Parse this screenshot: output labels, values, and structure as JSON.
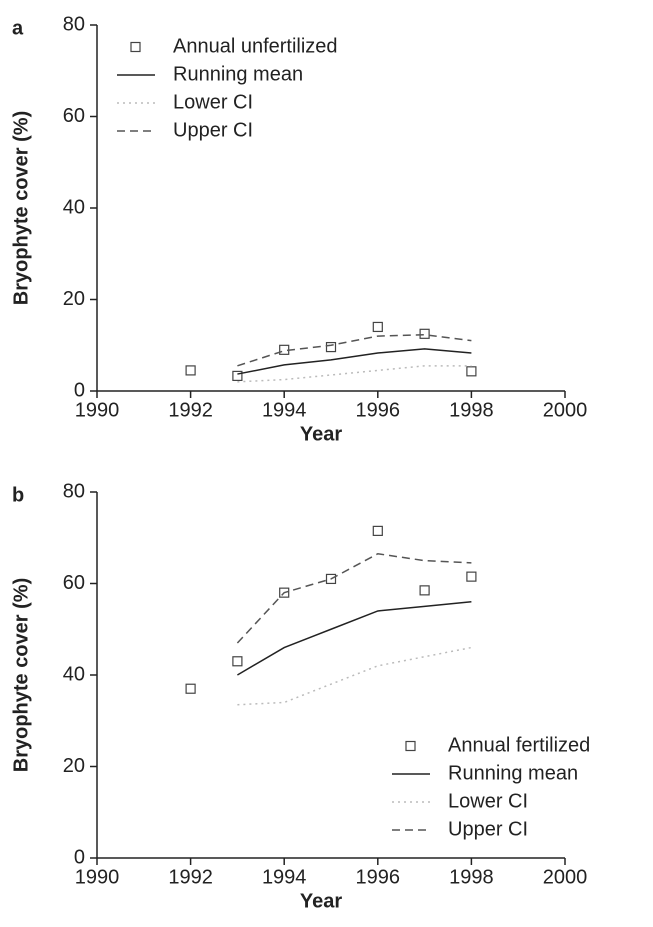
{
  "chart_data": [
    {
      "type": "line",
      "label": "a",
      "xlabel": "Year",
      "ylabel": "Bryophyte cover (%)",
      "x": [
        1992,
        1993,
        1994,
        1995,
        1996,
        1997,
        1998
      ],
      "series": [
        {
          "name": "Annual unfertilized",
          "style": "marker",
          "color": "#444444",
          "values": [
            4.5,
            3.3,
            9,
            9.6,
            14,
            12.5,
            4.3
          ]
        },
        {
          "name": "Running mean",
          "style": "solid",
          "color": "#222222",
          "values": [
            null,
            3.7,
            5.7,
            6.8,
            8.3,
            9.2,
            8.3
          ]
        },
        {
          "name": "Lower CI",
          "style": "dotted",
          "color": "#bbbbbb",
          "values": [
            null,
            2,
            2.5,
            3.5,
            4.5,
            5.5,
            5.5
          ]
        },
        {
          "name": "Upper CI",
          "style": "dashed",
          "color": "#555555",
          "values": [
            null,
            5.5,
            8.8,
            10,
            12,
            12.3,
            11
          ]
        }
      ],
      "xlim": [
        1990,
        2000
      ],
      "xticks": [
        1990,
        1992,
        1994,
        1996,
        1998,
        2000
      ],
      "ylim": [
        0,
        80
      ],
      "yticks": [
        0,
        20,
        40,
        60,
        80
      ],
      "legend": "upper left"
    },
    {
      "type": "line",
      "label": "b",
      "xlabel": "Year",
      "ylabel": "Bryophyte cover (%)",
      "x": [
        1992,
        1993,
        1994,
        1995,
        1996,
        1997,
        1998
      ],
      "series": [
        {
          "name": "Annual fertilized",
          "style": "marker",
          "color": "#444444",
          "values": [
            37,
            43,
            58,
            61,
            71.5,
            58.5,
            61.5
          ]
        },
        {
          "name": "Running mean",
          "style": "solid",
          "color": "#222222",
          "values": [
            null,
            40,
            46,
            50,
            54,
            55,
            56
          ]
        },
        {
          "name": "Lower CI",
          "style": "dotted",
          "color": "#bbbbbb",
          "values": [
            null,
            33.5,
            34,
            38,
            42,
            44,
            46
          ]
        },
        {
          "name": "Upper CI",
          "style": "dashed",
          "color": "#555555",
          "values": [
            null,
            47,
            58,
            61,
            66.5,
            65,
            64.5
          ]
        }
      ],
      "xlim": [
        1990,
        2000
      ],
      "xticks": [
        1990,
        1992,
        1994,
        1996,
        1998,
        2000
      ],
      "ylim": [
        0,
        80
      ],
      "yticks": [
        0,
        20,
        40,
        60,
        80
      ],
      "legend": "lower right"
    }
  ]
}
